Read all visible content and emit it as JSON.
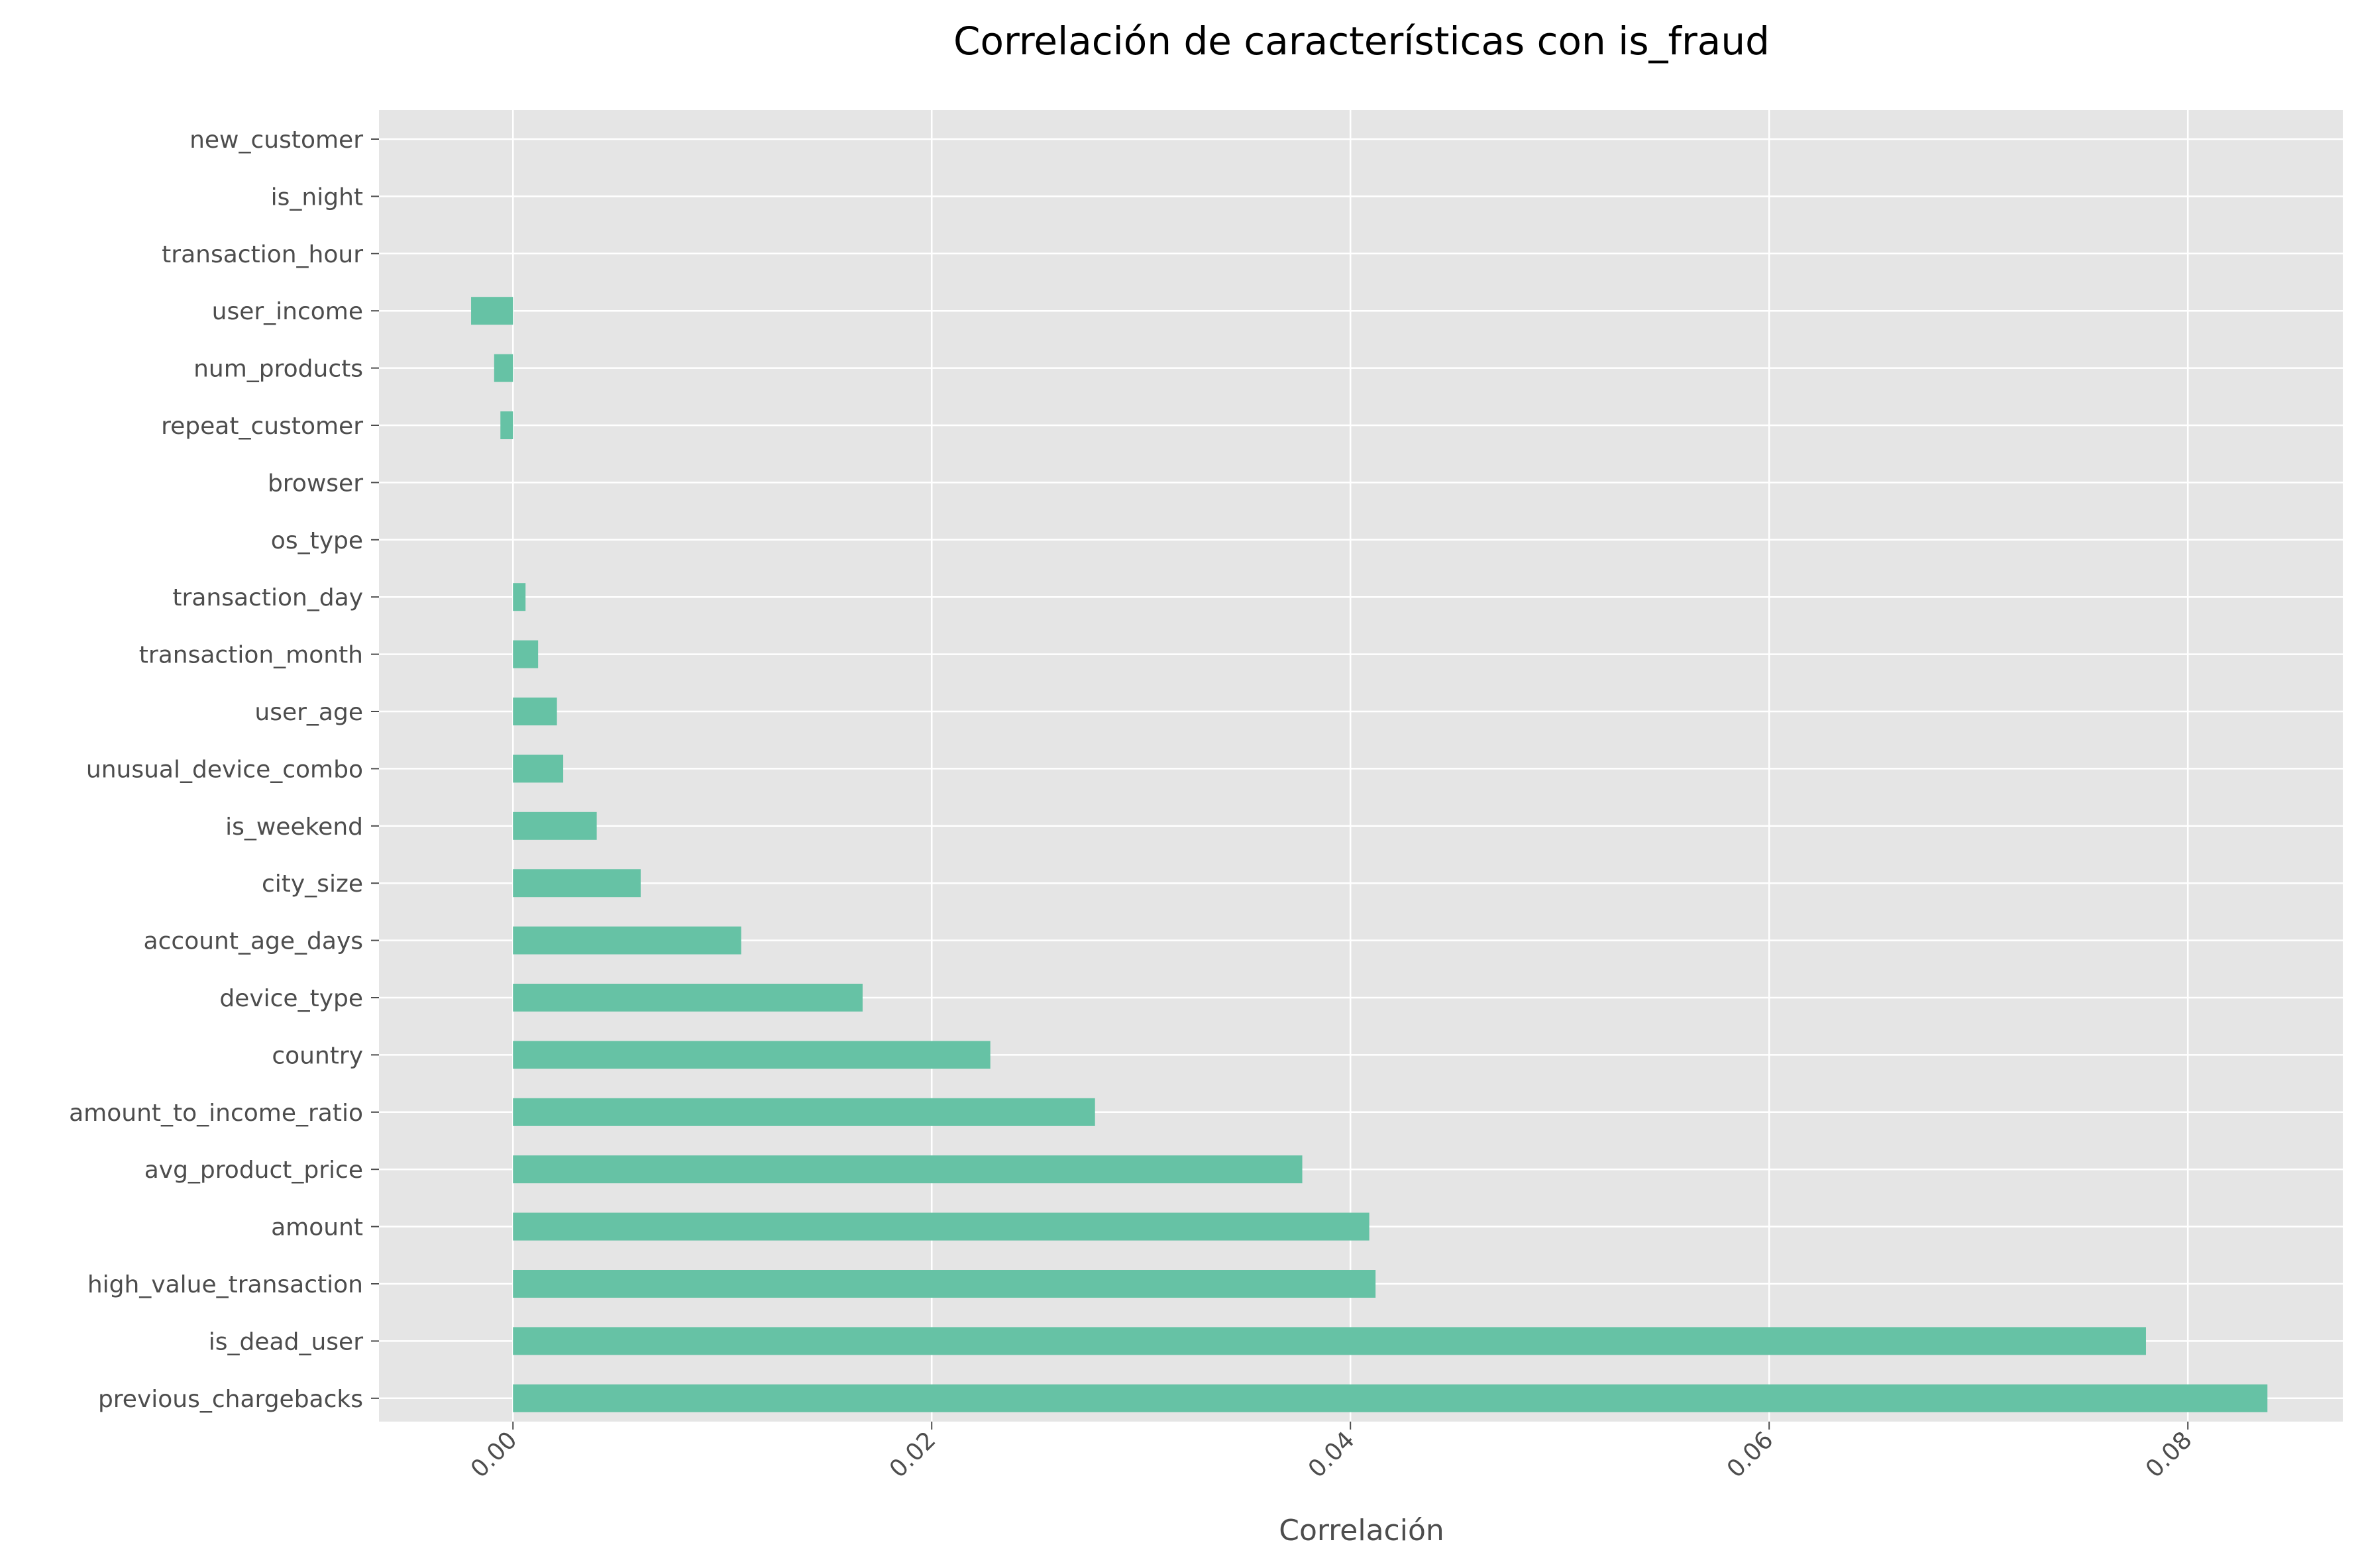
{
  "chart_data": {
    "type": "bar",
    "orientation": "horizontal",
    "title": "Correlación de características con is_fraud",
    "xlabel": "Correlación",
    "ylabel": "",
    "xlim": [
      -0.0064,
      0.0874
    ],
    "x_ticks": [
      "0.00",
      "0.02",
      "0.04",
      "0.06",
      "0.08"
    ],
    "x_tick_values": [
      0.0,
      0.02,
      0.04,
      0.06,
      0.08
    ],
    "grid": true,
    "legend": "none",
    "categories": [
      "new_customer",
      "is_night",
      "transaction_hour",
      "user_income",
      "num_products",
      "repeat_customer",
      "browser",
      "os_type",
      "transaction_day",
      "transaction_month",
      "user_age",
      "unusual_device_combo",
      "is_weekend",
      "city_size",
      "account_age_days",
      "device_type",
      "country",
      "amount_to_income_ratio",
      "avg_product_price",
      "amount",
      "high_value_transaction",
      "is_dead_user",
      "previous_chargebacks"
    ],
    "values": [
      0.0,
      0.0,
      0.0,
      -0.002,
      -0.0009,
      -0.0006,
      0.0,
      0.0,
      0.0006,
      0.0012,
      0.0021,
      0.0024,
      0.004,
      0.0061,
      0.0109,
      0.0167,
      0.0228,
      0.0278,
      0.0377,
      0.0409,
      0.0412,
      0.078,
      0.0838
    ],
    "colors": {
      "bar": "#66c2a5",
      "plot_bg": "#e5e5e5",
      "grid": "#ffffff",
      "text": "#4d4d4d"
    }
  }
}
